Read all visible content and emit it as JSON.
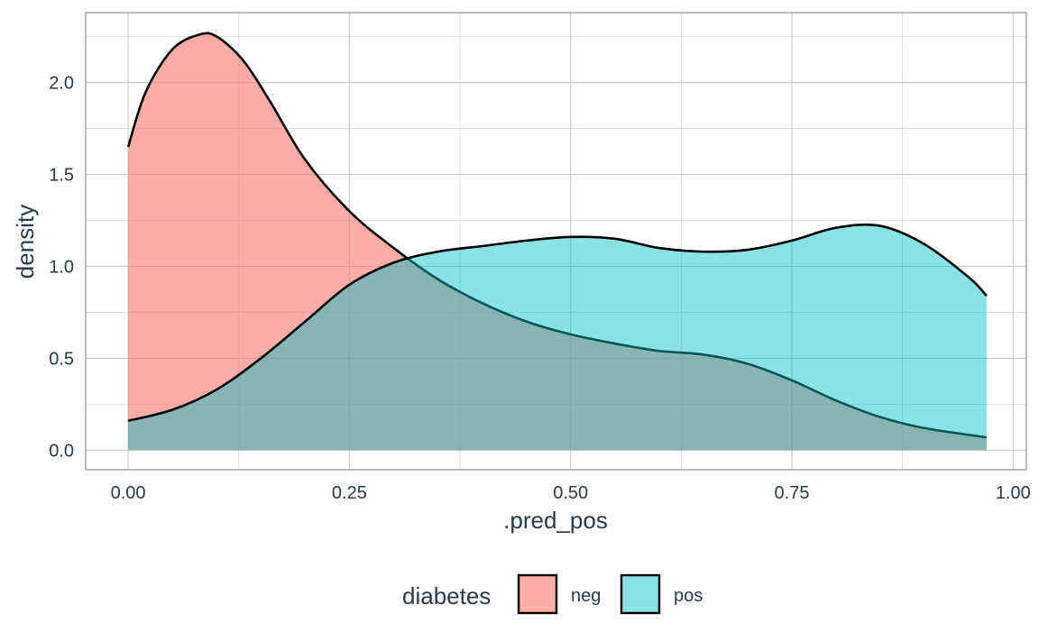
{
  "chart_data": {
    "type": "area",
    "subtype": "density",
    "title": "",
    "xlabel": ".pred_pos",
    "ylabel": "density",
    "xlim": [
      -0.048,
      1.015
    ],
    "ylim": [
      -0.106,
      2.38
    ],
    "x_ticks": [
      0.0,
      0.25,
      0.5,
      0.75,
      1.0
    ],
    "x_tick_labels": [
      "0.00",
      "0.25",
      "0.50",
      "0.75",
      "1.00"
    ],
    "y_ticks": [
      0.0,
      0.5,
      1.0,
      1.5,
      2.0
    ],
    "y_tick_labels": [
      "0.0",
      "0.5",
      "1.0",
      "1.5",
      "2.0"
    ],
    "grid": true,
    "legend": {
      "title": "diabetes",
      "placement": "bottom"
    },
    "series": [
      {
        "name": "neg",
        "color": "#F8766D",
        "fill_opacity": 0.6,
        "x": [
          0.0,
          0.02,
          0.05,
          0.08,
          0.1,
          0.13,
          0.16,
          0.2,
          0.25,
          0.3,
          0.35,
          0.4,
          0.45,
          0.5,
          0.55,
          0.6,
          0.65,
          0.7,
          0.75,
          0.8,
          0.85,
          0.9,
          0.97
        ],
        "y": [
          1.65,
          1.95,
          2.18,
          2.26,
          2.25,
          2.12,
          1.9,
          1.58,
          1.3,
          1.1,
          0.93,
          0.8,
          0.7,
          0.63,
          0.58,
          0.54,
          0.52,
          0.47,
          0.38,
          0.27,
          0.18,
          0.12,
          0.07
        ]
      },
      {
        "name": "pos",
        "color": "#00BFC4",
        "fill_opacity": 0.46,
        "x": [
          0.0,
          0.05,
          0.1,
          0.15,
          0.2,
          0.25,
          0.3,
          0.35,
          0.4,
          0.45,
          0.5,
          0.55,
          0.6,
          0.65,
          0.7,
          0.75,
          0.8,
          0.85,
          0.9,
          0.95,
          0.97
        ],
        "y": [
          0.16,
          0.22,
          0.33,
          0.5,
          0.7,
          0.9,
          1.02,
          1.08,
          1.11,
          1.14,
          1.16,
          1.15,
          1.1,
          1.08,
          1.09,
          1.14,
          1.21,
          1.22,
          1.12,
          0.94,
          0.84
        ]
      }
    ]
  }
}
